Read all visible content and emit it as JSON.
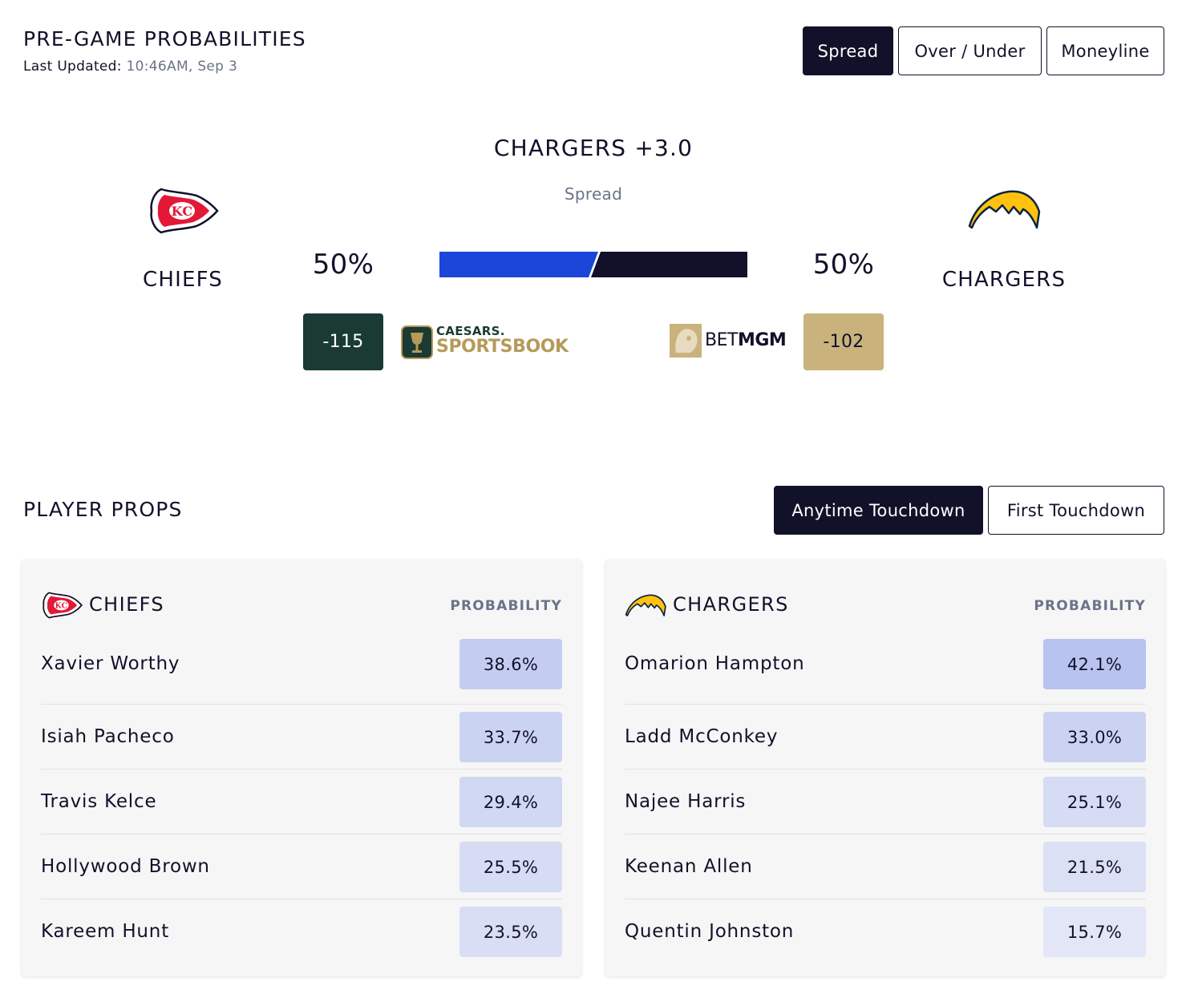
{
  "header": {
    "title": "PRE-GAME PROBABILITIES",
    "updated_label": "Last Updated:",
    "updated_time": "10:46AM, Sep 3",
    "tabs": [
      {
        "label": "Spread",
        "active": true
      },
      {
        "label": "Over / Under",
        "active": false
      },
      {
        "label": "Moneyline",
        "active": false
      }
    ]
  },
  "matchup": {
    "line": "CHARGERS +3.0",
    "line_type": "Spread",
    "home": {
      "name": "CHIEFS",
      "pct": "50%",
      "pct_value": 0.5,
      "odds": "-115",
      "book": "CAESARS SPORTSBOOK",
      "book_top": "CAESARS.",
      "book_bottom": "SPORTSBOOK",
      "logo": "chiefs-arrowhead-icon",
      "color": "#1c46d9"
    },
    "away": {
      "name": "CHARGERS",
      "pct": "50%",
      "pct_value": 0.5,
      "odds": "-102",
      "book": "BETMGM",
      "book_a": "BET",
      "book_b": "MGM",
      "logo": "chargers-bolt-icon",
      "color": "#12112a"
    }
  },
  "props": {
    "title": "PLAYER PROPS",
    "tabs": [
      {
        "label": "Anytime Touchdown",
        "active": true
      },
      {
        "label": "First Touchdown",
        "active": false
      }
    ],
    "prob_header": "PROBABILITY",
    "teams": [
      {
        "name": "CHIEFS",
        "players": [
          {
            "name": "Xavier Worthy",
            "prob": "38.6%"
          },
          {
            "name": "Isiah Pacheco",
            "prob": "33.7%"
          },
          {
            "name": "Travis Kelce",
            "prob": "29.4%"
          },
          {
            "name": "Hollywood Brown",
            "prob": "25.5%"
          },
          {
            "name": "Kareem Hunt",
            "prob": "23.5%"
          }
        ]
      },
      {
        "name": "CHARGERS",
        "players": [
          {
            "name": "Omarion Hampton",
            "prob": "42.1%"
          },
          {
            "name": "Ladd McConkey",
            "prob": "33.0%"
          },
          {
            "name": "Najee Harris",
            "prob": "25.1%"
          },
          {
            "name": "Keenan Allen",
            "prob": "21.5%"
          },
          {
            "name": "Quentin Johnston",
            "prob": "15.7%"
          }
        ]
      }
    ]
  },
  "colors": {
    "navy": "#12112a",
    "chiefs_blue_bar": "#1c46d9",
    "caesars_green": "#1b3a34",
    "betmgm_gold": "#c9b27c",
    "caesars_gold": "#b59a5a",
    "prob_chip_high": "#b8c3ef",
    "prob_chip_mid": "#c9d1f2",
    "prob_chip_low": "#dce1f5"
  }
}
